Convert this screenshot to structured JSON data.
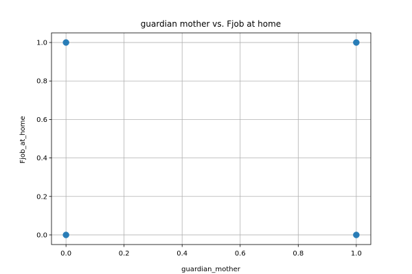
{
  "chart_data": {
    "type": "scatter",
    "title": "guardian mother vs. Fjob at home",
    "xlabel": "guardian_mother",
    "ylabel": "Fjob_at_home",
    "xlim": [
      -0.05,
      1.05
    ],
    "ylim": [
      -0.05,
      1.05
    ],
    "xticks": [
      "0.0",
      "0.2",
      "0.4",
      "0.6",
      "0.8",
      "1.0"
    ],
    "yticks": [
      "0.0",
      "0.2",
      "0.4",
      "0.6",
      "0.8",
      "1.0"
    ],
    "grid": true,
    "point_color": "#1f77b4",
    "points": [
      {
        "x": 0,
        "y": 1
      },
      {
        "x": 1,
        "y": 1
      },
      {
        "x": 0,
        "y": 0
      },
      {
        "x": 1,
        "y": 0
      }
    ]
  }
}
